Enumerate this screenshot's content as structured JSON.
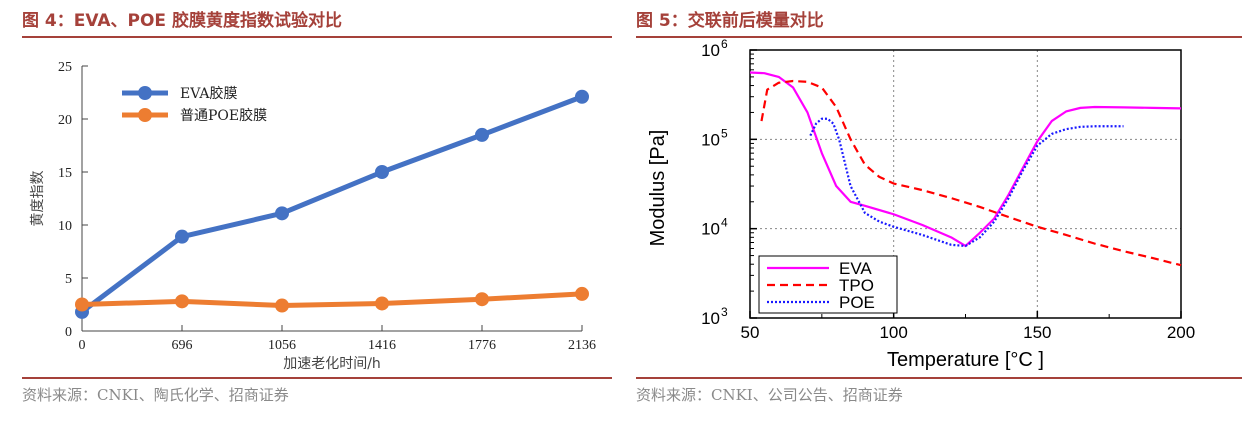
{
  "figures": [
    {
      "title": "图 4：EVA、POE 胶膜黄度指数试验对比",
      "source": "资料来源：CNKI、陶氏化学、招商证券"
    },
    {
      "title": "图 5：交联前后模量对比",
      "source": "资料来源：CNKI、公司公告、招商证券"
    }
  ],
  "chart_data": [
    {
      "type": "line",
      "title": "",
      "xlabel": "加速老化时间/h",
      "ylabel": "黄度指数",
      "x": [
        0,
        696,
        1056,
        1416,
        1776,
        2136
      ],
      "x_tick_labels": [
        "0",
        "696",
        "1056",
        "1416",
        "1776",
        "2136"
      ],
      "ylim": [
        0,
        25
      ],
      "y_ticks": [
        0,
        5,
        10,
        15,
        20,
        25
      ],
      "legend_position": "top-left",
      "grid": false,
      "series": [
        {
          "name": "EVA胶膜",
          "color": "#4472c4",
          "values": [
            1.8,
            8.9,
            11.1,
            15.0,
            18.5,
            22.1
          ]
        },
        {
          "name": "普通POE胶膜",
          "color": "#ed7d31",
          "values": [
            2.5,
            2.8,
            2.4,
            2.6,
            3.0,
            3.5
          ]
        }
      ]
    },
    {
      "type": "line",
      "title": "",
      "xlabel": "Temperature [°C ]",
      "ylabel": "Modulus [Pa]",
      "xlim": [
        50,
        200
      ],
      "x_ticks": [
        50,
        100,
        150,
        200
      ],
      "y_scale": "log",
      "ylim": [
        1000,
        1000000
      ],
      "y_ticks": [
        {
          "value": 1000,
          "base": "10",
          "exp": "3"
        },
        {
          "value": 10000,
          "base": "10",
          "exp": "4"
        },
        {
          "value": 100000,
          "base": "10",
          "exp": "5"
        },
        {
          "value": 1000000,
          "base": "10",
          "exp": "6"
        }
      ],
      "grid": "dotted at x=100, x=150, y=10^4, y=10^5",
      "legend_position": "bottom-left",
      "series": [
        {
          "name": "EVA",
          "color": "#ff00ff",
          "style": "solid",
          "x": [
            50,
            55,
            60,
            65,
            70,
            75,
            80,
            85,
            90,
            100,
            110,
            120,
            125,
            130,
            135,
            140,
            145,
            150,
            155,
            160,
            165,
            170,
            180,
            190,
            200
          ],
          "values": [
            560000,
            550000,
            500000,
            380000,
            200000,
            70000,
            30000,
            20000,
            18000,
            14500,
            11000,
            8000,
            6400,
            9000,
            13000,
            24000,
            48000,
            95000,
            160000,
            205000,
            225000,
            230000,
            228000,
            225000,
            222000
          ]
        },
        {
          "name": "TPO",
          "color": "#ff0000",
          "style": "dashed",
          "x": [
            54,
            56,
            60,
            65,
            70,
            75,
            80,
            85,
            90,
            95,
            100,
            110,
            120,
            130,
            140,
            150,
            160,
            170,
            180,
            190,
            200
          ],
          "values": [
            160000,
            360000,
            430000,
            450000,
            440000,
            380000,
            230000,
            100000,
            52000,
            38000,
            32000,
            27000,
            22000,
            17500,
            13500,
            10500,
            8500,
            6800,
            5600,
            4700,
            3900
          ]
        },
        {
          "name": "POE",
          "color": "#1a1aff",
          "style": "dotted",
          "x": [
            71,
            73,
            75,
            77,
            79,
            81,
            83,
            85,
            90,
            95,
            100,
            110,
            120,
            125,
            130,
            135,
            140,
            145,
            150,
            155,
            160,
            165,
            170,
            180
          ],
          "values": [
            110000,
            150000,
            170000,
            170000,
            150000,
            100000,
            55000,
            30000,
            15000,
            12000,
            10500,
            8500,
            6600,
            6400,
            8000,
            12000,
            22000,
            45000,
            85000,
            115000,
            130000,
            138000,
            140000,
            140000
          ]
        }
      ]
    }
  ]
}
